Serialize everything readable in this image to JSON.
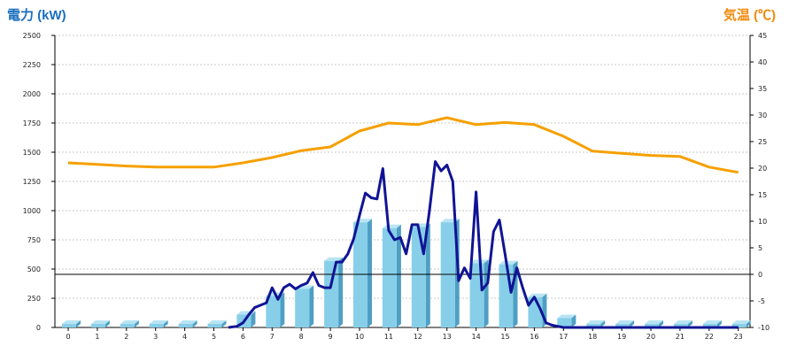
{
  "colors": {
    "left_title": "#1a6fbf",
    "right_title": "#f08a0a",
    "power_line": "#101494",
    "temp_line": "#f5a000",
    "bar_front": "#87cfe9",
    "bar_side": "#4f9fc4",
    "bar_top": "#b9e4f3",
    "grid": "#c8c8c8"
  },
  "chart_data": {
    "type": "bar",
    "left_axis_title": "電力 (kW)",
    "right_axis_title": "気温 (℃)",
    "categories": [
      "0",
      "1",
      "2",
      "3",
      "4",
      "5",
      "6",
      "7",
      "8",
      "9",
      "10",
      "11",
      "12",
      "13",
      "14",
      "15",
      "16",
      "17",
      "18",
      "19",
      "20",
      "21",
      "22",
      "23"
    ],
    "ylim": [
      0,
      2500
    ],
    "yticks": [
      0,
      250,
      500,
      750,
      1000,
      1250,
      1500,
      1750,
      2000,
      2250,
      2500
    ],
    "y2lim": [
      -10,
      45
    ],
    "y2ticks": [
      -10,
      -5,
      0,
      5,
      10,
      15,
      20,
      25,
      30,
      35,
      40,
      45
    ],
    "grid": true,
    "bar_values": [
      30,
      30,
      30,
      30,
      30,
      30,
      110,
      270,
      330,
      570,
      900,
      850,
      860,
      900,
      550,
      540,
      260,
      80,
      30,
      30,
      30,
      30,
      30,
      30
    ],
    "power_line": {
      "x": [
        5.5,
        5.8,
        6.0,
        6.2,
        6.4,
        6.6,
        6.8,
        7.0,
        7.2,
        7.4,
        7.6,
        7.8,
        8.0,
        8.2,
        8.4,
        8.6,
        8.8,
        9.0,
        9.2,
        9.4,
        9.6,
        9.8,
        10.0,
        10.2,
        10.4,
        10.6,
        10.8,
        11.0,
        11.2,
        11.4,
        11.6,
        11.8,
        12.0,
        12.2,
        12.4,
        12.6,
        12.8,
        13.0,
        13.2,
        13.4,
        13.6,
        13.8,
        14.0,
        14.2,
        14.4,
        14.6,
        14.8,
        15.0,
        15.2,
        15.4,
        15.6,
        15.8,
        16.0,
        16.2,
        16.4,
        16.6,
        16.8,
        17.0,
        17.2,
        17.4,
        18,
        19,
        20,
        21,
        22,
        23
      ],
      "values": [
        0,
        10,
        40,
        110,
        170,
        190,
        210,
        340,
        240,
        340,
        370,
        330,
        360,
        380,
        470,
        360,
        340,
        340,
        560,
        560,
        630,
        760,
        960,
        1150,
        1110,
        1100,
        1360,
        830,
        750,
        770,
        630,
        880,
        880,
        630,
        1000,
        1420,
        1340,
        1390,
        1250,
        400,
        510,
        420,
        1160,
        320,
        380,
        820,
        920,
        620,
        300,
        510,
        340,
        190,
        260,
        160,
        40,
        20,
        10,
        0,
        0,
        0,
        0,
        0,
        0,
        0,
        0,
        0
      ]
    },
    "temp_line": {
      "x": [
        0,
        1,
        2,
        3,
        4,
        5,
        6,
        7,
        8,
        9,
        10,
        11,
        12,
        13,
        14,
        15,
        16,
        17,
        18,
        19,
        20,
        21,
        22,
        23
      ],
      "values": [
        21.0,
        20.7,
        20.4,
        20.2,
        20.2,
        20.2,
        21.0,
        22.0,
        23.3,
        24.0,
        27.0,
        28.5,
        28.2,
        29.5,
        28.2,
        28.6,
        28.2,
        26.0,
        23.2,
        22.8,
        22.4,
        22.2,
        20.2,
        19.2
      ]
    },
    "reference_line_value": 0
  }
}
